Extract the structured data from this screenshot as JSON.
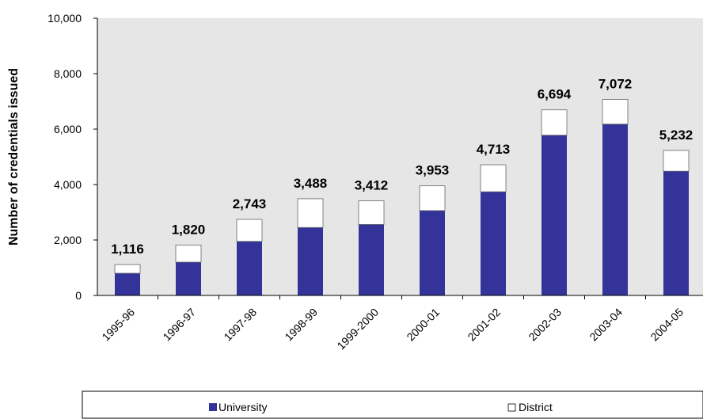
{
  "chart_data": {
    "type": "bar",
    "stacked": true,
    "categories": [
      "1995-96",
      "1996-97",
      "1997-98",
      "1998-99",
      "1999-2000",
      "2000-01",
      "2001-02",
      "2002-03",
      "2003-04",
      "2004-05"
    ],
    "series": [
      {
        "name": "University",
        "color": "#333399",
        "values": [
          800,
          1200,
          1950,
          2450,
          2560,
          3060,
          3740,
          5780,
          6180,
          4480
        ]
      },
      {
        "name": "District",
        "color": "#ffffff",
        "values": [
          316,
          620,
          793,
          1038,
          852,
          893,
          973,
          914,
          892,
          752
        ]
      }
    ],
    "totals": [
      1116,
      1820,
      2743,
      3488,
      3412,
      3953,
      4713,
      6694,
      7072,
      5232
    ],
    "total_labels": [
      "1,116",
      "1,820",
      "2,743",
      "3,488",
      "3,412",
      "3,953",
      "4,713",
      "6,694",
      "7,072",
      "5,232"
    ],
    "ylabel": "Number of credentials issued",
    "xlabel": "",
    "title": "",
    "ylim": [
      0,
      10000
    ],
    "yticks": [
      0,
      2000,
      4000,
      6000,
      8000,
      10000
    ],
    "ytick_labels": [
      "0",
      "2,000",
      "4,000",
      "6,000",
      "8,000",
      "10,000"
    ],
    "plot_background": "#e6e6e6",
    "grid": false,
    "legend_position": "bottom"
  }
}
